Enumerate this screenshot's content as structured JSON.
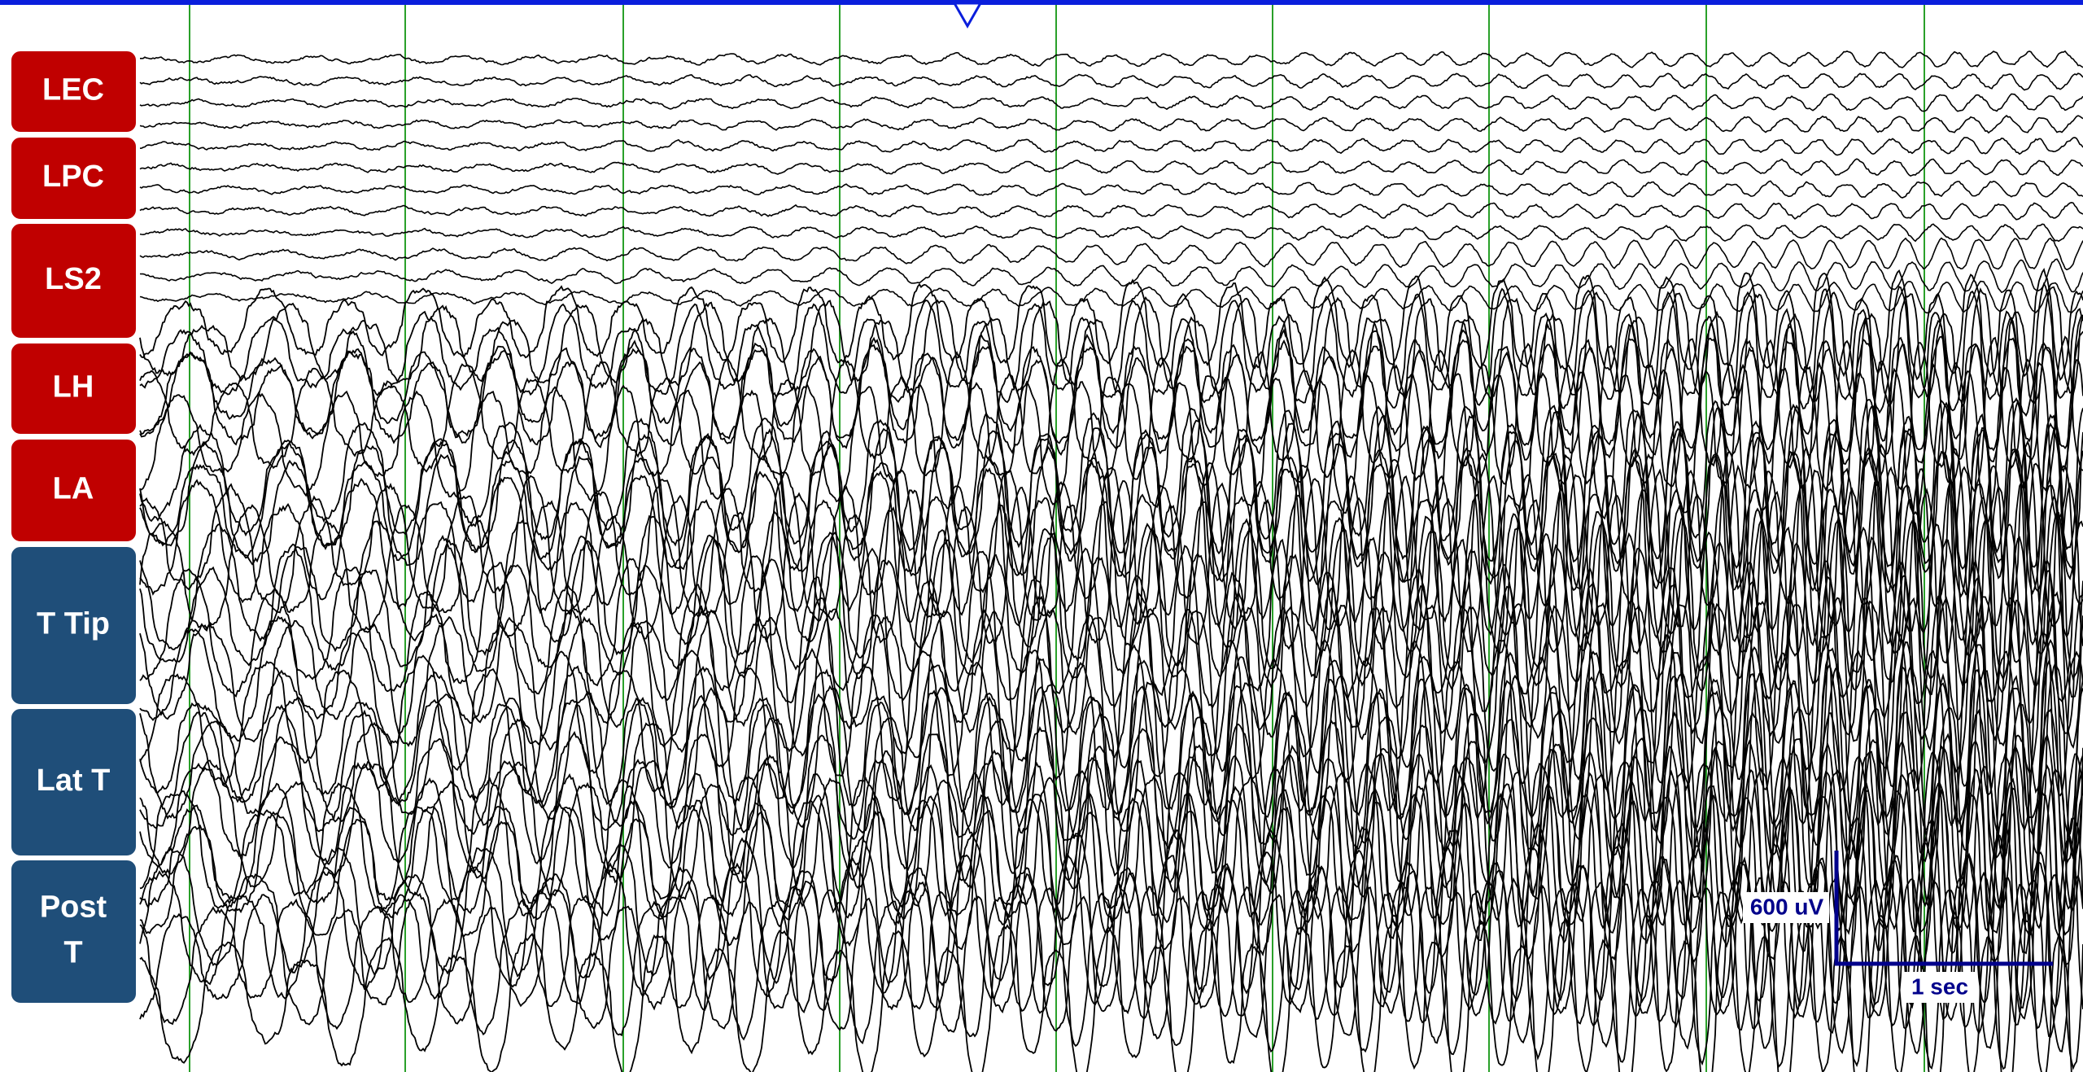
{
  "channel_groups": [
    {
      "label": "LEC"
    },
    {
      "label": "LPC"
    },
    {
      "label": "LS2"
    },
    {
      "label": "LH"
    },
    {
      "label": "LA"
    },
    {
      "label": "T Tip"
    },
    {
      "label": "Lat T"
    },
    {
      "label": "Post",
      "label_line2": "T"
    }
  ],
  "scale_bar": {
    "amplitude": "600 uV",
    "time": "1 sec"
  }
}
